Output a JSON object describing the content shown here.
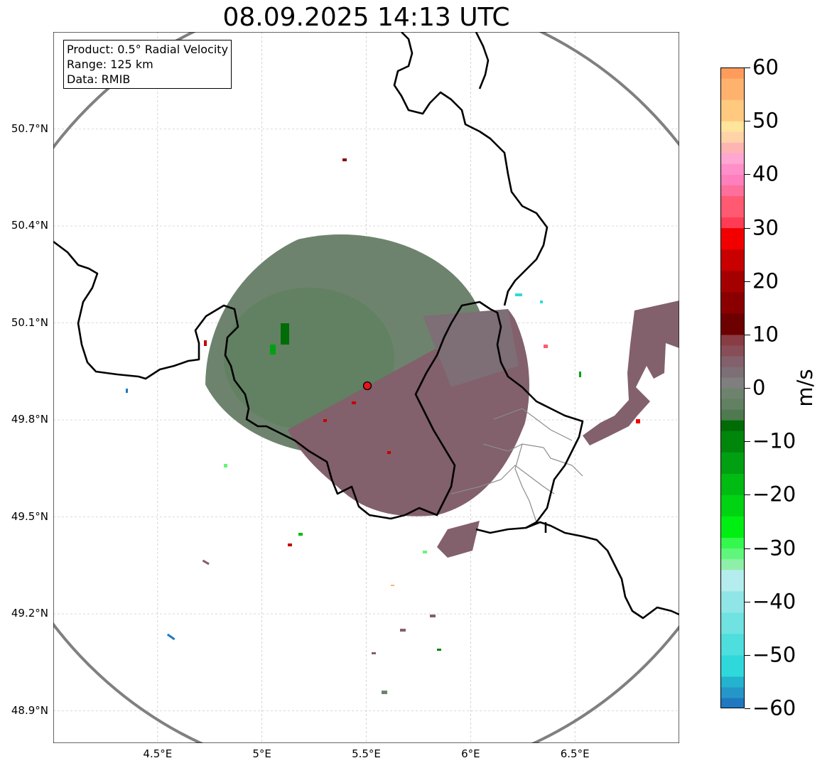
{
  "title": "08.09.2025 14:13 UTC",
  "info_box": {
    "product": "Product: 0.5° Radial Velocity",
    "range": "Range: 125 km",
    "data": "Data: RMIB"
  },
  "map": {
    "type": "radar-ppi-velocity",
    "extent": {
      "lon_min": 4.0,
      "lon_max": 7.0,
      "lat_min": 48.8,
      "lat_max": 51.0
    },
    "radar_site": {
      "lon": 5.505,
      "lat": 49.915
    },
    "lat_ticks": [
      {
        "value": 50.7,
        "label": "50.7°N"
      },
      {
        "value": 50.4,
        "label": "50.4°N"
      },
      {
        "value": 50.1,
        "label": "50.1°N"
      },
      {
        "value": 49.8,
        "label": "49.8°N"
      },
      {
        "value": 49.5,
        "label": "49.5°N"
      },
      {
        "value": 49.2,
        "label": "49.2°N"
      },
      {
        "value": 48.9,
        "label": "48.9°N"
      }
    ],
    "lon_ticks": [
      {
        "value": 4.5,
        "label": "4.5°E"
      },
      {
        "value": 5.0,
        "label": "5°E"
      },
      {
        "value": 5.5,
        "label": "5.5°E"
      },
      {
        "value": 6.0,
        "label": "6°E"
      },
      {
        "value": 6.5,
        "label": "6.5°E"
      }
    ],
    "gridlines": true,
    "range_ring_color": "#808080",
    "site_marker_color": "#e8131b"
  },
  "colorbar": {
    "unit": "m/s",
    "min": -60,
    "max": 60,
    "ticks": [
      "60",
      "50",
      "40",
      "30",
      "20",
      "10",
      "0",
      "−10",
      "−20",
      "−30",
      "−40",
      "−50",
      "−60"
    ],
    "tick_values": [
      60,
      50,
      40,
      30,
      20,
      10,
      0,
      -10,
      -20,
      -30,
      -40,
      -50,
      -60
    ],
    "bands": [
      {
        "from": -60,
        "to": -58,
        "color": "#1f78c0"
      },
      {
        "from": -58,
        "to": -56,
        "color": "#2596c8"
      },
      {
        "from": -56,
        "to": -54,
        "color": "#23b3cf"
      },
      {
        "from": -54,
        "to": -50,
        "color": "#2fd9db"
      },
      {
        "from": -50,
        "to": -46,
        "color": "#4ddedd"
      },
      {
        "from": -46,
        "to": -42,
        "color": "#6fe2e1"
      },
      {
        "from": -42,
        "to": -38,
        "color": "#90e6e6"
      },
      {
        "from": -38,
        "to": -34,
        "color": "#b5ecee"
      },
      {
        "from": -34,
        "to": -32,
        "color": "#8ef0a8"
      },
      {
        "from": -32,
        "to": -30,
        "color": "#60f67c"
      },
      {
        "from": -30,
        "to": -28,
        "color": "#35f84f"
      },
      {
        "from": -28,
        "to": -24,
        "color": "#00ef12"
      },
      {
        "from": -24,
        "to": -20,
        "color": "#00d412"
      },
      {
        "from": -20,
        "to": -16,
        "color": "#00bb12"
      },
      {
        "from": -16,
        "to": -12,
        "color": "#00a012"
      },
      {
        "from": -12,
        "to": -8,
        "color": "#00870b"
      },
      {
        "from": -8,
        "to": -6,
        "color": "#006c06"
      },
      {
        "from": -6,
        "to": -4,
        "color": "#4f7a4f"
      },
      {
        "from": -4,
        "to": -2,
        "color": "#628062"
      },
      {
        "from": -2,
        "to": 0,
        "color": "#6d836d"
      },
      {
        "from": 0,
        "to": 2,
        "color": "#7f7f7f"
      },
      {
        "from": 2,
        "to": 4,
        "color": "#7e6e76"
      },
      {
        "from": 4,
        "to": 6,
        "color": "#82606c"
      },
      {
        "from": 6,
        "to": 8,
        "color": "#884e58"
      },
      {
        "from": 8,
        "to": 10,
        "color": "#8a3c44"
      },
      {
        "from": 10,
        "to": 14,
        "color": "#6d0000"
      },
      {
        "from": 14,
        "to": 18,
        "color": "#8a0000"
      },
      {
        "from": 18,
        "to": 22,
        "color": "#a50000"
      },
      {
        "from": 22,
        "to": 26,
        "color": "#c80000"
      },
      {
        "from": 26,
        "to": 30,
        "color": "#f20000"
      },
      {
        "from": 30,
        "to": 32,
        "color": "#ff3c55"
      },
      {
        "from": 32,
        "to": 36,
        "color": "#ff5a72"
      },
      {
        "from": 36,
        "to": 38,
        "color": "#ff6f9b"
      },
      {
        "from": 38,
        "to": 40,
        "color": "#ff7fbd"
      },
      {
        "from": 40,
        "to": 42,
        "color": "#ff8fc8"
      },
      {
        "from": 42,
        "to": 44,
        "color": "#ffa6d2"
      },
      {
        "from": 44,
        "to": 46,
        "color": "#ffb4b4"
      },
      {
        "from": 46,
        "to": 48,
        "color": "#ffd2a8"
      },
      {
        "from": 48,
        "to": 50,
        "color": "#ffe49b"
      },
      {
        "from": 50,
        "to": 54,
        "color": "#ffc97f"
      },
      {
        "from": 54,
        "to": 58,
        "color": "#ffb26e"
      },
      {
        "from": 58,
        "to": 60,
        "color": "#ff9c5c"
      }
    ]
  }
}
